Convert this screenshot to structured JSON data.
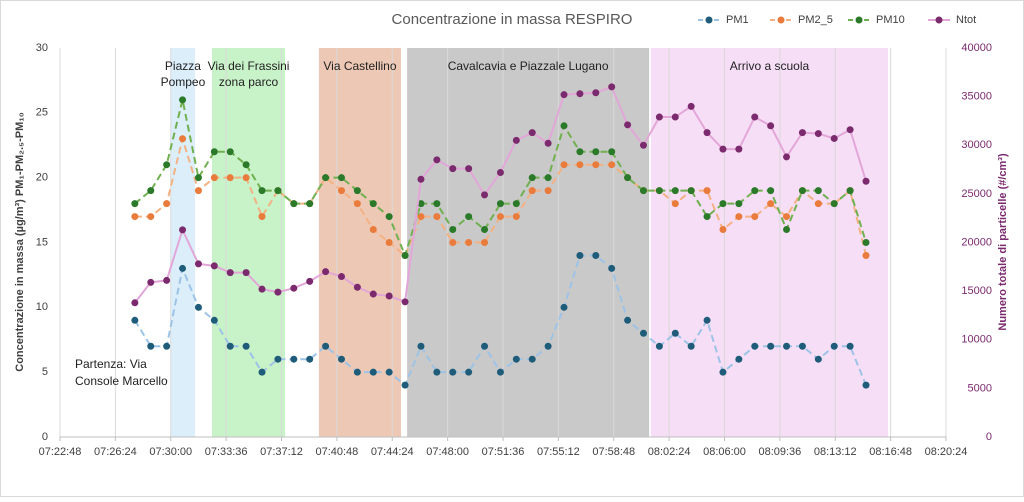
{
  "chart_data": {
    "type": "line",
    "title": "Concentrazione in massa RESPIRO",
    "ylabel": "Concentrazione in massa (µg/m³) PM₁-PM₂.₅-PM₁₀",
    "y2label": "Numero totale di particelle (#/cm³)",
    "y2color": "#7b2a6e",
    "xlim": [
      "07:22:48",
      "08:20:24"
    ],
    "xticks": [
      "07:22:48",
      "07:26:24",
      "07:30:00",
      "07:33:36",
      "07:37:12",
      "07:40:48",
      "07:44:24",
      "07:48:00",
      "07:51:36",
      "07:55:12",
      "07:58:48",
      "08:02:24",
      "08:06:00",
      "08:09:36",
      "08:13:12",
      "08:16:48",
      "08:20:24"
    ],
    "ylim": [
      0,
      30
    ],
    "yticks": [
      0,
      5,
      10,
      15,
      20,
      25,
      30
    ],
    "y2lim": [
      0,
      40000
    ],
    "y2ticks": [
      0,
      5000,
      10000,
      15000,
      20000,
      25000,
      30000,
      35000,
      40000
    ],
    "grid": "x",
    "legend": "top-right",
    "x": [
      "07:27:40",
      "07:28:42",
      "07:29:44",
      "07:30:46",
      "07:31:48",
      "07:32:50",
      "07:33:52",
      "07:34:54",
      "07:35:56",
      "07:36:58",
      "07:38:00",
      "07:39:02",
      "07:40:04",
      "07:41:06",
      "07:42:08",
      "07:43:10",
      "07:44:12",
      "07:45:14",
      "07:46:16",
      "07:47:18",
      "07:48:20",
      "07:49:22",
      "07:50:24",
      "07:51:26",
      "07:52:28",
      "07:53:30",
      "07:54:32",
      "07:55:34",
      "07:56:36",
      "07:57:38",
      "07:58:40",
      "07:59:42",
      "08:00:44",
      "08:01:46",
      "08:02:48",
      "08:03:50",
      "08:04:52",
      "08:05:54",
      "08:06:56",
      "08:07:58",
      "08:09:00",
      "08:10:02",
      "08:11:04",
      "08:12:06",
      "08:13:08",
      "08:14:10",
      "08:15:12"
    ],
    "series": [
      {
        "name": "PM1",
        "color": "#1f5c7a",
        "line_color": "#9dc3e6",
        "dashed": true,
        "axis": "y",
        "values": [
          9,
          7,
          7,
          13,
          10,
          9,
          7,
          7,
          5,
          6,
          6,
          6,
          7,
          6,
          5,
          5,
          5,
          4,
          7,
          5,
          5,
          5,
          7,
          5,
          6,
          6,
          7,
          10,
          14,
          14,
          13,
          9,
          8,
          7,
          8,
          7,
          9,
          5,
          6,
          7,
          7,
          7,
          7,
          6,
          7,
          7,
          4
        ]
      },
      {
        "name": "PM2_5",
        "color": "#e97c3c",
        "line_color": "#f4b183",
        "dashed": true,
        "axis": "y",
        "values": [
          17,
          17,
          18,
          23,
          19,
          20,
          20,
          20,
          17,
          19,
          18,
          18,
          20,
          19,
          18,
          16,
          15,
          14,
          17,
          17,
          15,
          15,
          15,
          17,
          17,
          19,
          19,
          21,
          21,
          21,
          21,
          20,
          19,
          19,
          18,
          19,
          19,
          16,
          17,
          17,
          18,
          17,
          19,
          18,
          18,
          19,
          14
        ]
      },
      {
        "name": "PM10",
        "color": "#2a7a2a",
        "line_color": "#70b050",
        "dashed": true,
        "axis": "y",
        "values": [
          18,
          19,
          21,
          26,
          20,
          22,
          22,
          21,
          19,
          19,
          18,
          18,
          20,
          20,
          19,
          18,
          17,
          14,
          18,
          18,
          16,
          17,
          16,
          18,
          18,
          20,
          20,
          24,
          22,
          22,
          22,
          20,
          19,
          19,
          19,
          19,
          17,
          18,
          18,
          19,
          19,
          16,
          19,
          19,
          18,
          19,
          15
        ]
      },
      {
        "name": "Ntot",
        "color": "#7b2a6e",
        "line_color": "#e3a6d8",
        "dashed": false,
        "axis": "y2",
        "values": [
          13800,
          15900,
          16100,
          21300,
          17800,
          17600,
          16900,
          16900,
          15200,
          14900,
          15300,
          16000,
          17000,
          16500,
          15400,
          14700,
          14500,
          13900,
          26500,
          28500,
          27600,
          27600,
          24900,
          27200,
          30500,
          31300,
          30200,
          35200,
          35300,
          35400,
          36000,
          32100,
          30000,
          32900,
          32900,
          34000,
          31300,
          29600,
          29600,
          32900,
          32000,
          28800,
          31300,
          31200,
          30700,
          31600,
          26300
        ]
      }
    ],
    "regions": [
      {
        "label": [
          "Piazza",
          "Pompeo"
        ],
        "start": "07:30:00",
        "end": "07:31:35",
        "color": "#dbeefa"
      },
      {
        "label": [
          "Via dei Frassini",
          "zona parco"
        ],
        "start": "07:32:41",
        "end": "07:37:26",
        "color": "#c8f2c8"
      },
      {
        "label": [
          "Via Castellino"
        ],
        "start": "07:39:38",
        "end": "07:44:58",
        "color": "#edc8b4"
      },
      {
        "label": [
          "Cavalcavia e Piazzale Lugano"
        ],
        "start": "07:45:22",
        "end": "08:01:06",
        "color": "#c9c9c9"
      },
      {
        "label": [
          "Arrivo a scuola"
        ],
        "start": "08:01:13",
        "end": "08:16:38",
        "color": "#f6def6"
      }
    ],
    "annotations": [
      {
        "lines": [
          "Partenza: Via",
          "Console Marcello"
        ]
      }
    ]
  }
}
